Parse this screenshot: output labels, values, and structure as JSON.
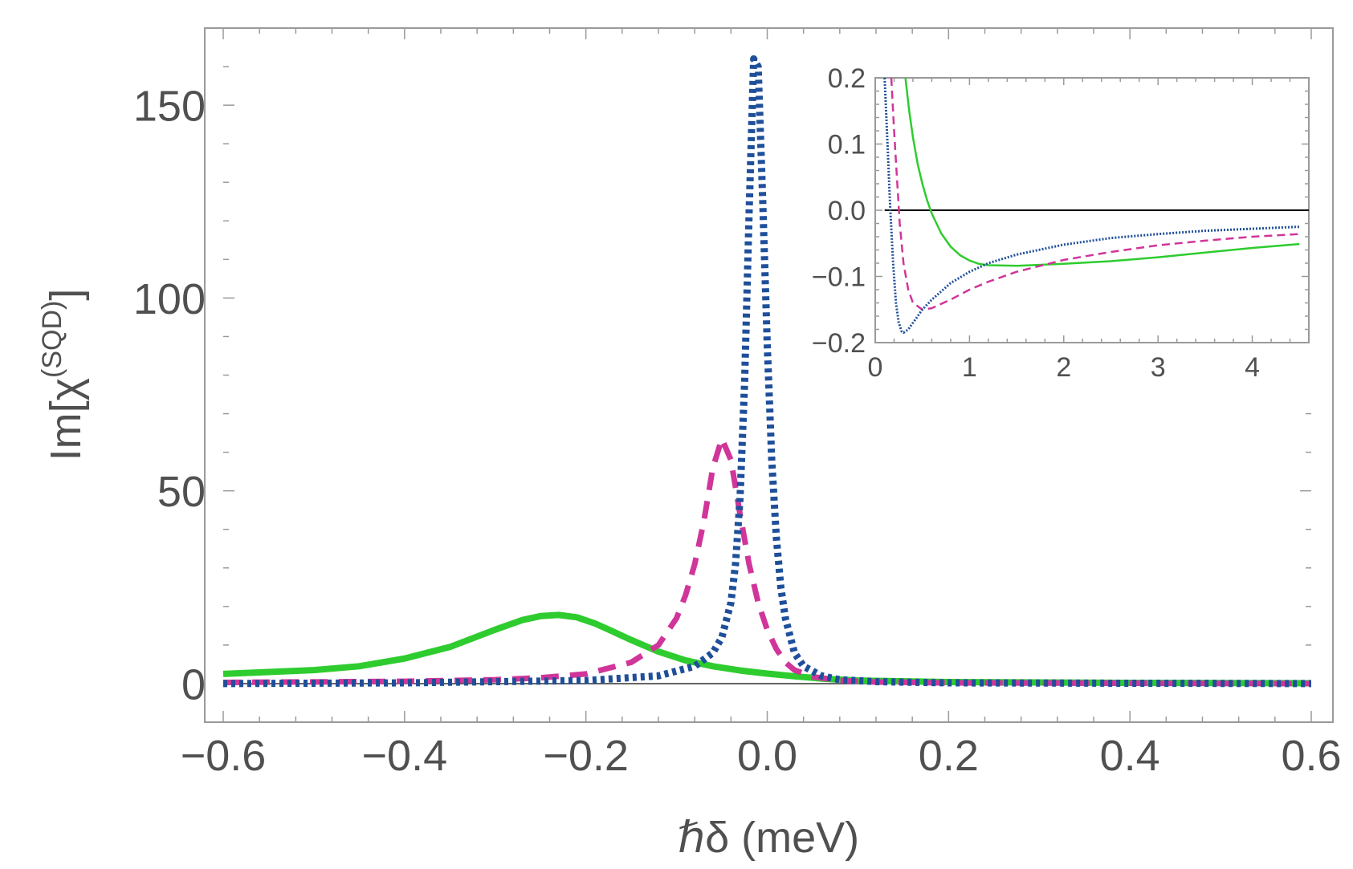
{
  "chart_data": [
    {
      "id": "main",
      "type": "line",
      "title": "",
      "xlabel": "ℏδ (meV)",
      "ylabel": {
        "base": "Im[χ",
        "sup": "(SQD)",
        "close": "]"
      },
      "xlim": [
        -0.6,
        0.6
      ],
      "ylim": [
        -10,
        170
      ],
      "xticks": [
        -0.6,
        -0.4,
        -0.2,
        0.0,
        0.2,
        0.4,
        0.6
      ],
      "xtick_labels": [
        "−0.6",
        "−0.4",
        "−0.2",
        "0.0",
        "0.2",
        "0.4",
        "0.6"
      ],
      "yticks": [
        0,
        50,
        100,
        150
      ],
      "ytick_labels": [
        "0",
        "50",
        "100",
        "150"
      ],
      "grid": false,
      "zero_line": true,
      "series": [
        {
          "name": "solid",
          "color": "#2ecc2e",
          "style": "solid",
          "x": [
            -0.6,
            -0.5,
            -0.45,
            -0.4,
            -0.35,
            -0.3,
            -0.27,
            -0.25,
            -0.23,
            -0.21,
            -0.19,
            -0.17,
            -0.15,
            -0.12,
            -0.09,
            -0.06,
            -0.03,
            0.0,
            0.03,
            0.06,
            0.1,
            0.2,
            0.4,
            0.6
          ],
          "y": [
            2.5,
            3.5,
            4.5,
            6.5,
            9.5,
            14.0,
            16.5,
            17.5,
            17.8,
            17.2,
            15.6,
            13.5,
            11.3,
            8.3,
            6.0,
            4.5,
            3.4,
            2.6,
            1.9,
            1.3,
            0.8,
            0.4,
            0.2,
            0.1
          ]
        },
        {
          "name": "dashed",
          "color": "#d0359a",
          "style": "dashed",
          "x": [
            -0.6,
            -0.4,
            -0.3,
            -0.25,
            -0.2,
            -0.15,
            -0.12,
            -0.1,
            -0.09,
            -0.08,
            -0.07,
            -0.06,
            -0.05,
            -0.04,
            -0.03,
            -0.02,
            -0.01,
            0.0,
            0.01,
            0.02,
            0.03,
            0.05,
            0.08,
            0.12,
            0.2,
            0.4,
            0.6
          ],
          "y": [
            0.3,
            0.6,
            1.0,
            1.5,
            2.5,
            5.5,
            10.0,
            17.0,
            23.0,
            31.0,
            42.0,
            56.0,
            63.5,
            58.0,
            44.0,
            31.0,
            21.0,
            14.0,
            9.0,
            5.5,
            3.5,
            1.8,
            0.8,
            0.4,
            0.2,
            0.1,
            0.0
          ]
        },
        {
          "name": "dotted",
          "color": "#1f4f9a",
          "style": "dotted",
          "x": [
            -0.6,
            -0.4,
            -0.2,
            -0.12,
            -0.08,
            -0.06,
            -0.05,
            -0.04,
            -0.035,
            -0.03,
            -0.025,
            -0.02,
            -0.015,
            -0.01,
            -0.005,
            0.0,
            0.005,
            0.01,
            0.015,
            0.02,
            0.03,
            0.04,
            0.06,
            0.08,
            0.12,
            0.2,
            0.4,
            0.6
          ],
          "y": [
            0.0,
            0.2,
            0.8,
            2.0,
            4.5,
            8.0,
            12.0,
            21.0,
            31.0,
            48.0,
            78.0,
            122.0,
            162.0,
            160.0,
            125.0,
            88.0,
            58.0,
            38.0,
            25.0,
            17.0,
            8.0,
            4.5,
            2.0,
            1.0,
            0.5,
            0.2,
            0.1,
            0.0
          ]
        }
      ]
    },
    {
      "id": "inset",
      "type": "line",
      "title": "",
      "xlabel": "",
      "ylabel": "",
      "xlim": [
        0,
        4.6
      ],
      "ylim": [
        -0.2,
        0.2
      ],
      "xticks": [
        0,
        1,
        2,
        3,
        4
      ],
      "xtick_labels": [
        "0",
        "1",
        "2",
        "3",
        "4"
      ],
      "yticks": [
        -0.2,
        -0.1,
        0.0,
        0.1,
        0.2
      ],
      "ytick_labels": [
        "−0.2",
        "−0.1",
        "0.0",
        "0.1",
        "0.2"
      ],
      "zero_line": true,
      "series": [
        {
          "name": "solid",
          "color": "#2ecc2e",
          "style": "solid",
          "x": [
            0.32,
            0.36,
            0.4,
            0.45,
            0.5,
            0.55,
            0.6,
            0.7,
            0.8,
            0.9,
            1.0,
            1.1,
            1.2,
            1.5,
            2.0,
            2.5,
            3.0,
            3.5,
            4.0,
            4.5
          ],
          "y": [
            0.2,
            0.15,
            0.11,
            0.07,
            0.04,
            0.015,
            -0.005,
            -0.035,
            -0.055,
            -0.068,
            -0.076,
            -0.081,
            -0.083,
            -0.084,
            -0.081,
            -0.077,
            -0.071,
            -0.064,
            -0.057,
            -0.051
          ]
        },
        {
          "name": "dashed",
          "color": "#d0359a",
          "style": "dashed",
          "x": [
            0.17,
            0.2,
            0.23,
            0.26,
            0.3,
            0.35,
            0.4,
            0.5,
            0.6,
            0.8,
            1.0,
            1.2,
            1.5,
            2.0,
            2.5,
            3.0,
            3.5,
            4.0,
            4.5
          ],
          "y": [
            0.2,
            0.12,
            0.05,
            -0.02,
            -0.08,
            -0.12,
            -0.14,
            -0.15,
            -0.148,
            -0.135,
            -0.12,
            -0.108,
            -0.093,
            -0.075,
            -0.063,
            -0.053,
            -0.046,
            -0.04,
            -0.036
          ]
        },
        {
          "name": "dotted",
          "color": "#1f4f9a",
          "style": "dotted",
          "x": [
            0.1,
            0.13,
            0.16,
            0.19,
            0.22,
            0.25,
            0.28,
            0.3,
            0.35,
            0.4,
            0.5,
            0.6,
            0.8,
            1.0,
            1.2,
            1.5,
            2.0,
            2.5,
            3.0,
            3.5,
            4.0,
            4.5
          ],
          "y": [
            0.2,
            0.1,
            0.0,
            -0.08,
            -0.14,
            -0.17,
            -0.183,
            -0.185,
            -0.18,
            -0.17,
            -0.15,
            -0.135,
            -0.11,
            -0.093,
            -0.08,
            -0.067,
            -0.052,
            -0.042,
            -0.036,
            -0.031,
            -0.028,
            -0.025
          ]
        }
      ]
    }
  ]
}
